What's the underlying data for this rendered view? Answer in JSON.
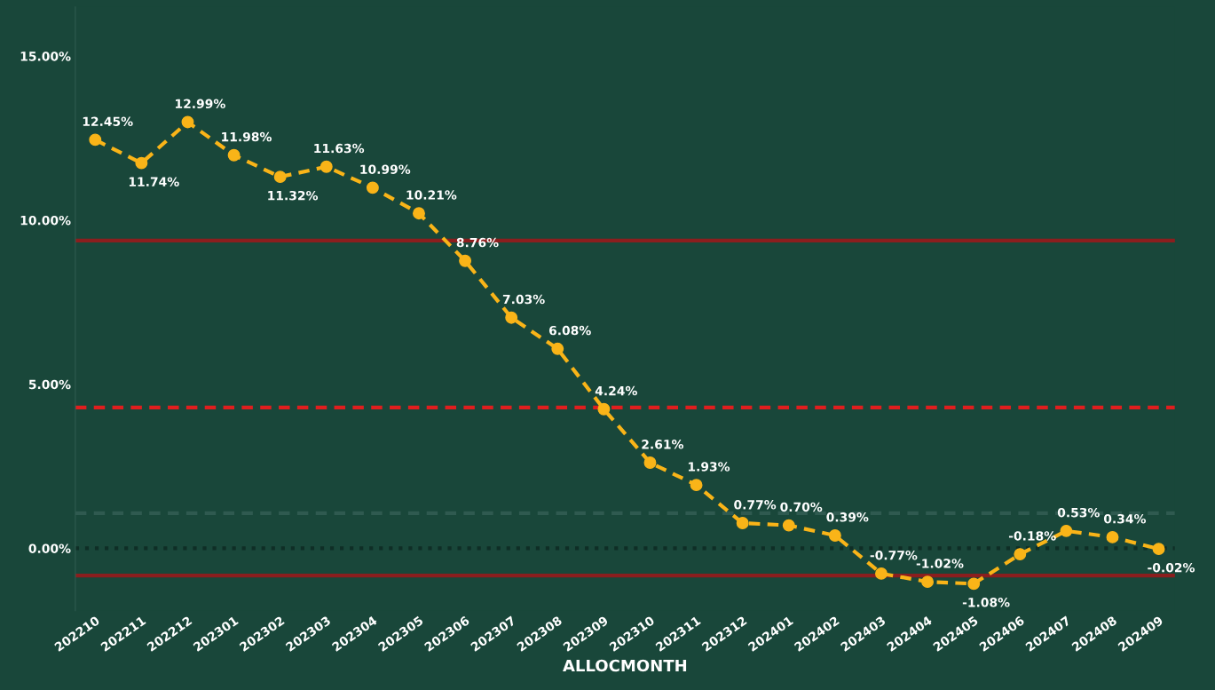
{
  "chart_data": {
    "type": "line",
    "xlabel": "ALLOCMONTH",
    "categories": [
      "202210",
      "202211",
      "202212",
      "202301",
      "202302",
      "202303",
      "202304",
      "202305",
      "202306",
      "202307",
      "202308",
      "202309",
      "202310",
      "202311",
      "202312",
      "202401",
      "202402",
      "202403",
      "202404",
      "202405",
      "202406",
      "202407",
      "202408",
      "202409"
    ],
    "series": [
      {
        "color": "#f9b418",
        "values": [
          12.45,
          11.74,
          12.99,
          11.98,
          11.32,
          11.63,
          10.99,
          10.21,
          8.76,
          7.03,
          6.08,
          4.24,
          2.61,
          1.93,
          0.77,
          0.7,
          0.39,
          -0.77,
          -1.02,
          -1.08,
          -0.18,
          0.53,
          0.34,
          -0.02
        ],
        "value_labels": [
          "12.45%",
          "11.74%",
          "12.99%",
          "11.98%",
          "11.32%",
          "11.63%",
          "10.99%",
          "10.21%",
          "8.76%",
          "7.03%",
          "6.08%",
          "4.24%",
          "2.61%",
          "1.93%",
          "0.77%",
          "0.70%",
          "0.39%",
          "-0.77%",
          "-1.02%",
          "-1.08%",
          "-0.18%",
          "0.53%",
          "0.34%",
          "-0.02%"
        ]
      }
    ],
    "ylim": [
      -1.9,
      16.5
    ],
    "yticks": [
      {
        "value": 0,
        "label": "0.00%"
      },
      {
        "value": 5,
        "label": "5.00%"
      },
      {
        "value": 10,
        "label": "10.00%"
      },
      {
        "value": 15,
        "label": "15.00%"
      }
    ],
    "ref_lines": [
      {
        "axis": "y",
        "value": 9.38,
        "color": "#8b1e1e",
        "line_style": "solid"
      },
      {
        "axis": "y",
        "value": 4.29,
        "color": "#e01e1e",
        "line_style": "dashed"
      },
      {
        "axis": "y",
        "value": -0.83,
        "color": "#8b1e1e",
        "line_style": "solid"
      },
      {
        "axis": "y",
        "value": 1.07,
        "color": "#2f5a50",
        "line_style": "dashed"
      },
      {
        "axis": "y",
        "value": 0,
        "color": "#0f2e26",
        "line_style": "dotted"
      }
    ],
    "marker": "circle",
    "line_style": "dashed",
    "grid": false,
    "legend": false
  }
}
